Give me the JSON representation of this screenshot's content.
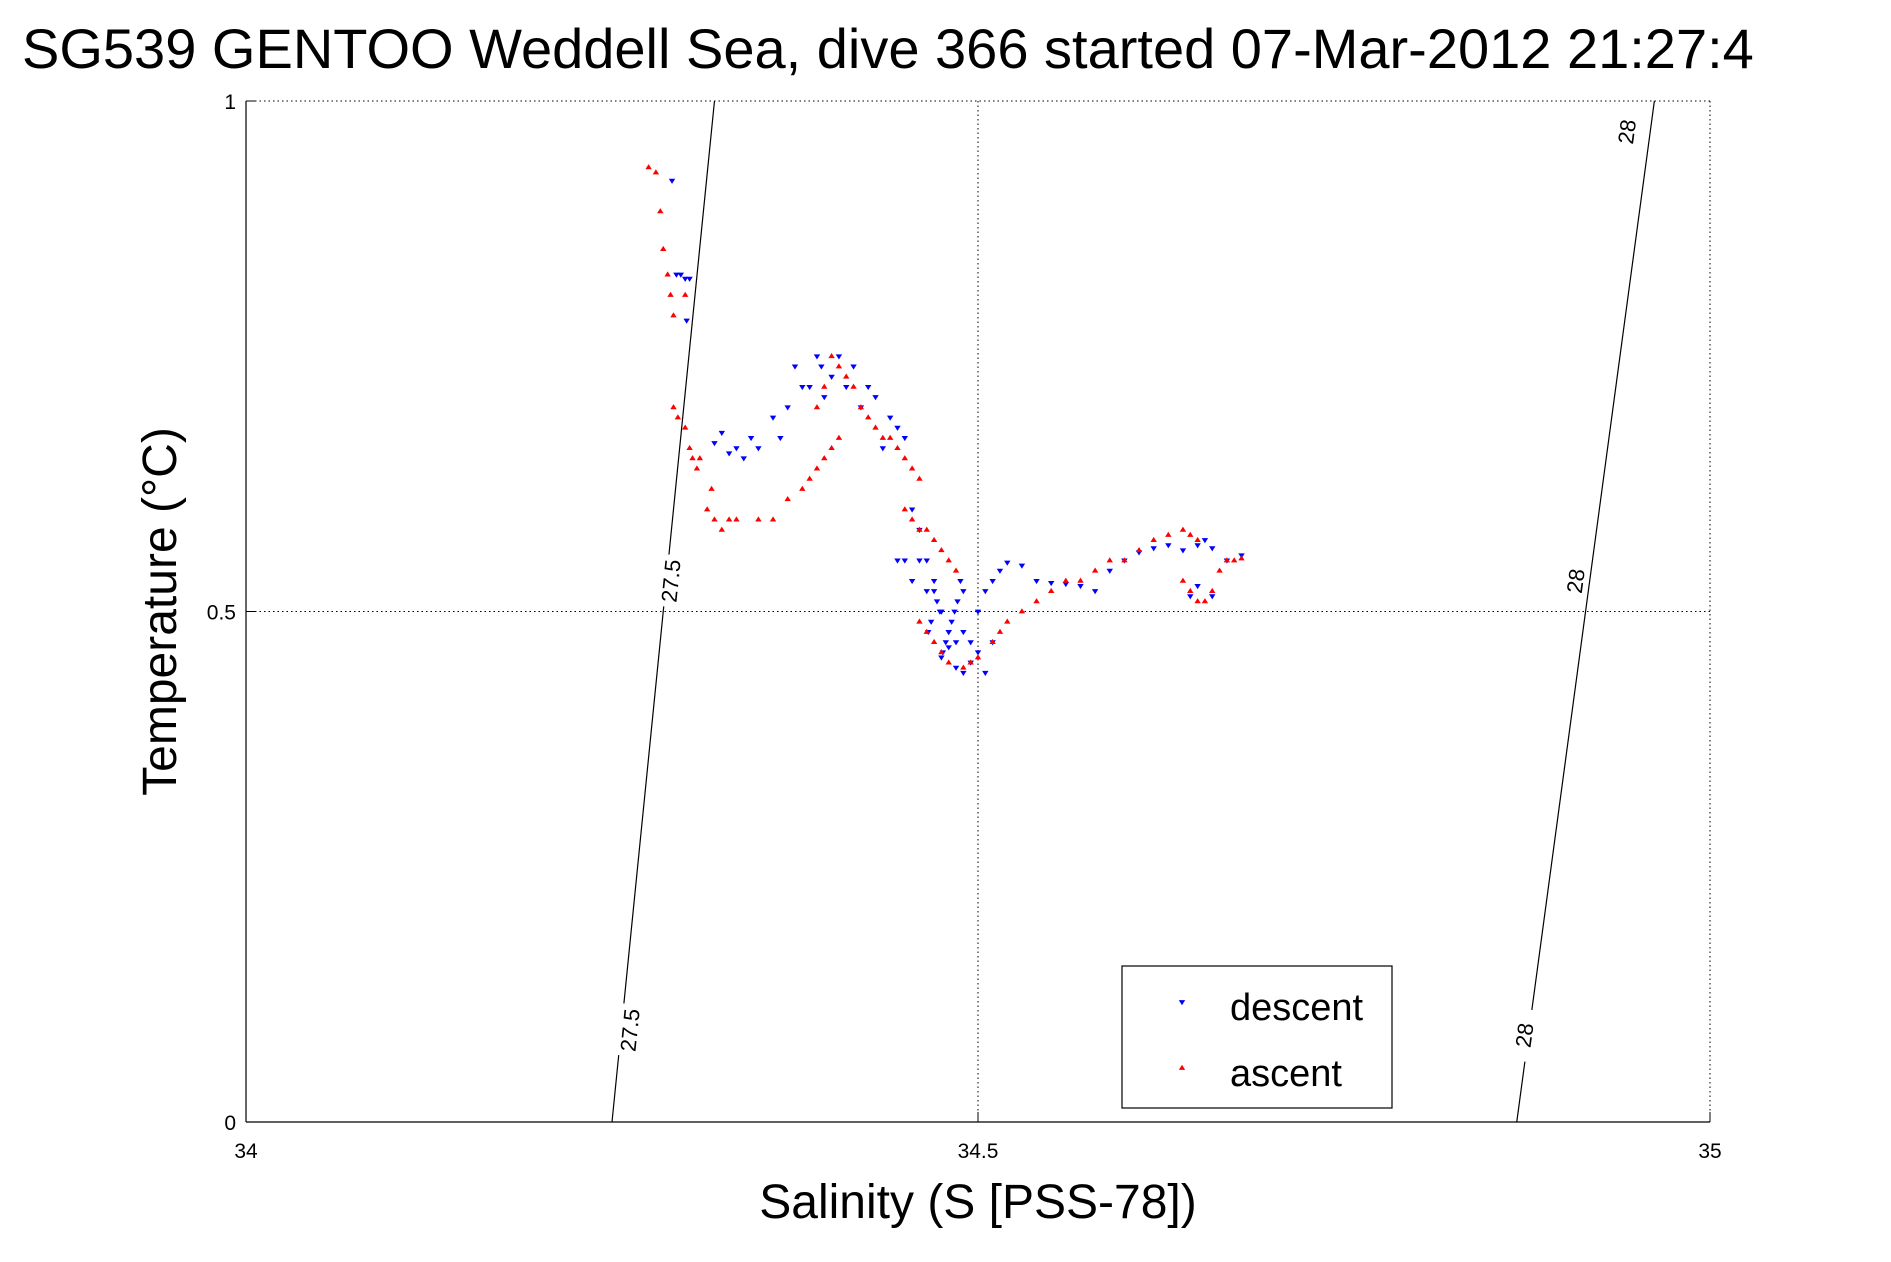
{
  "chart_data": {
    "type": "scatter",
    "title": "SG539 GENTOO Weddell Sea, dive 366 started 07-Mar-2012 21:27:4",
    "xlabel": "Salinity (S [PSS-78])",
    "ylabel": "Temperature (°C)",
    "xlim": [
      34,
      35
    ],
    "ylim": [
      0,
      1
    ],
    "x_ticks": [
      34,
      34.5,
      35
    ],
    "x_tick_labels": [
      "34",
      "34.5",
      "35"
    ],
    "y_ticks": [
      0,
      0.5,
      1
    ],
    "y_tick_labels": [
      "0",
      "0.5",
      "1"
    ],
    "grid": true,
    "legend_position": "bottom-right",
    "colors": {
      "descent": "#0000ff",
      "ascent": "#ff0000",
      "contour": "#000000"
    },
    "density_contours": [
      {
        "value": "27.5",
        "points": [
          [
            34.25,
            0.0
          ],
          [
            34.32,
            1.0
          ]
        ],
        "labels": [
          {
            "x": 34.262,
            "y": 0.09
          },
          {
            "x": 34.29,
            "y": 0.53
          }
        ]
      },
      {
        "value": "28",
        "points": [
          [
            34.868,
            0.0
          ],
          [
            34.962,
            1.0
          ]
        ],
        "labels": [
          {
            "x": 34.873,
            "y": 0.085
          },
          {
            "x": 34.908,
            "y": 0.53
          },
          {
            "x": 34.943,
            "y": 0.97
          }
        ]
      }
    ],
    "series": [
      {
        "name": "descent",
        "marker": "triangle-down",
        "x": [
          34.291,
          34.294,
          34.297,
          34.3,
          34.303,
          34.301,
          34.32,
          34.325,
          34.33,
          34.335,
          34.34,
          34.345,
          34.35,
          34.36,
          34.365,
          34.37,
          34.375,
          34.38,
          34.385,
          34.39,
          34.393,
          34.395,
          34.4,
          34.405,
          34.41,
          34.415,
          34.42,
          34.425,
          34.43,
          34.435,
          34.44,
          34.445,
          34.45,
          34.455,
          34.46,
          34.465,
          34.445,
          34.45,
          34.455,
          34.46,
          34.465,
          34.47,
          34.475,
          34.48,
          34.485,
          34.49,
          34.495,
          34.5,
          34.505,
          34.51,
          34.49,
          34.488,
          34.486,
          34.484,
          34.482,
          34.48,
          34.478,
          34.476,
          34.474,
          34.472,
          34.47,
          34.468,
          34.466,
          34.475,
          34.48,
          34.485,
          34.49,
          34.495,
          34.5,
          34.505,
          34.51,
          34.515,
          34.52,
          34.53,
          34.54,
          34.55,
          34.56,
          34.57,
          34.58,
          34.59,
          34.6,
          34.61,
          34.62,
          34.63,
          34.64,
          34.65,
          34.655,
          34.66,
          34.65,
          34.645,
          34.66,
          34.67,
          34.68
        ],
        "y": [
          0.922,
          0.83,
          0.83,
          0.826,
          0.826,
          0.785,
          0.665,
          0.675,
          0.655,
          0.66,
          0.65,
          0.67,
          0.66,
          0.69,
          0.67,
          0.7,
          0.74,
          0.72,
          0.72,
          0.75,
          0.74,
          0.71,
          0.73,
          0.75,
          0.72,
          0.74,
          0.7,
          0.72,
          0.71,
          0.66,
          0.69,
          0.68,
          0.67,
          0.6,
          0.58,
          0.55,
          0.55,
          0.55,
          0.53,
          0.55,
          0.52,
          0.53,
          0.5,
          0.48,
          0.47,
          0.44,
          0.45,
          0.46,
          0.44,
          0.47,
          0.52,
          0.53,
          0.51,
          0.5,
          0.49,
          0.48,
          0.47,
          0.46,
          0.5,
          0.51,
          0.52,
          0.49,
          0.48,
          0.455,
          0.465,
          0.445,
          0.48,
          0.47,
          0.5,
          0.52,
          0.53,
          0.54,
          0.548,
          0.545,
          0.53,
          0.528,
          0.527,
          0.525,
          0.52,
          0.54,
          0.55,
          0.558,
          0.562,
          0.565,
          0.56,
          0.565,
          0.57,
          0.562,
          0.525,
          0.515,
          0.515,
          0.55,
          0.555
        ]
      },
      {
        "name": "ascent",
        "marker": "triangle-up",
        "x": [
          34.275,
          34.28,
          34.283,
          34.285,
          34.288,
          34.29,
          34.292,
          34.3,
          34.292,
          34.295,
          34.3,
          34.303,
          34.305,
          34.308,
          34.31,
          34.315,
          34.318,
          34.32,
          34.325,
          34.33,
          34.335,
          34.35,
          34.36,
          34.37,
          34.38,
          34.385,
          34.39,
          34.395,
          34.4,
          34.405,
          34.39,
          34.395,
          34.4,
          34.405,
          34.41,
          34.415,
          34.42,
          34.425,
          34.43,
          34.435,
          34.44,
          34.445,
          34.45,
          34.455,
          34.46,
          34.45,
          34.455,
          34.46,
          34.465,
          34.47,
          34.475,
          34.48,
          34.485,
          34.46,
          34.465,
          34.47,
          34.475,
          34.48,
          34.49,
          34.495,
          34.5,
          34.51,
          34.515,
          34.52,
          34.53,
          34.54,
          34.55,
          34.56,
          34.57,
          34.58,
          34.59,
          34.6,
          34.61,
          34.62,
          34.63,
          34.64,
          34.645,
          34.65,
          34.64,
          34.645,
          34.65,
          34.655,
          34.66,
          34.665,
          34.67,
          34.675,
          34.68
        ],
        "y": [
          0.935,
          0.93,
          0.892,
          0.855,
          0.83,
          0.81,
          0.79,
          0.81,
          0.7,
          0.69,
          0.68,
          0.66,
          0.65,
          0.64,
          0.65,
          0.6,
          0.62,
          0.59,
          0.58,
          0.59,
          0.59,
          0.59,
          0.59,
          0.61,
          0.62,
          0.63,
          0.64,
          0.65,
          0.66,
          0.67,
          0.7,
          0.72,
          0.75,
          0.74,
          0.73,
          0.72,
          0.7,
          0.69,
          0.68,
          0.67,
          0.67,
          0.66,
          0.65,
          0.64,
          0.63,
          0.6,
          0.59,
          0.58,
          0.58,
          0.57,
          0.56,
          0.55,
          0.54,
          0.49,
          0.48,
          0.47,
          0.46,
          0.45,
          0.445,
          0.45,
          0.455,
          0.47,
          0.48,
          0.49,
          0.5,
          0.51,
          0.52,
          0.53,
          0.53,
          0.54,
          0.55,
          0.55,
          0.56,
          0.57,
          0.575,
          0.58,
          0.575,
          0.57,
          0.53,
          0.52,
          0.51,
          0.51,
          0.52,
          0.54,
          0.55,
          0.55,
          0.552
        ]
      }
    ],
    "legend": [
      {
        "label": "descent",
        "color": "#0000ff",
        "marker": "triangle-down"
      },
      {
        "label": "ascent",
        "color": "#ff0000",
        "marker": "triangle-up"
      }
    ]
  }
}
